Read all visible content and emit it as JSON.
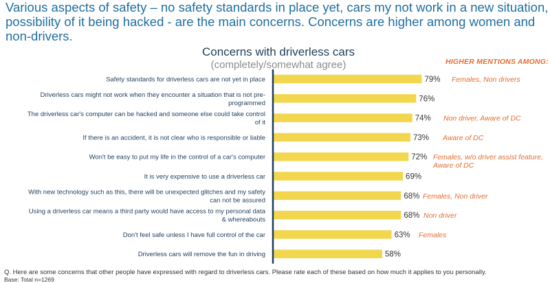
{
  "headline": "Various aspects of safety – no safety standards in place yet, cars my not work in a new situation, possibility of it being hacked - are the main concerns. Concerns are higher among women and non-drivers.",
  "chart_data": {
    "type": "bar",
    "orientation": "horizontal",
    "title": "Concerns with driverless cars",
    "subtitle": "(completely/somewhat agree)",
    "xlabel": "",
    "ylabel": "",
    "xlim": [
      0,
      100
    ],
    "value_suffix": "%",
    "categories": [
      "Safety standards for driverless cars are not yet in place",
      "Driverless cars might not work when they encounter a situation that is not pre-programmed",
      "The driverless car's computer can be hacked and someone else could take control of it",
      "If there is an accident, it is not clear who is responsible or liable",
      "Won't be easy to put my life in the control of a car's computer",
      "It is very expensive to use a driverless car",
      "With new technology such as this, there will be unexpected glitches and my safety can not be assured",
      "Using a driverless car means a third party would have access to  my personal data & whereabouts",
      "Don't feel safe unless I have full control of the car",
      "Driverless cars will remove the fun in driving"
    ],
    "category_lines": [
      [
        "Safety standards for driverless cars are not yet in place"
      ],
      [
        "Driverless cars might not work when they encounter a situation that is not pre-",
        "programmed"
      ],
      [
        "The driverless car's computer can be hacked and someone else could take control",
        "of it"
      ],
      [
        "If there is an accident, it is not clear who is responsible or liable"
      ],
      [
        "Won't be easy to put my life in the control of a car's computer"
      ],
      [
        "It is very expensive to use a driverless car"
      ],
      [
        "With new technology such as this, there will be unexpected glitches and my safety",
        "can not be assured"
      ],
      [
        "Using a driverless car means a third party would have access to  my personal data",
        "& whereabouts"
      ],
      [
        "Don't feel safe unless I have full control of the car"
      ],
      [
        "Driverless cars will remove the fun in driving"
      ]
    ],
    "values": [
      79,
      76,
      74,
      73,
      72,
      69,
      68,
      68,
      63,
      58
    ],
    "higher_mentions_header": "HIGHER MENTIONS AMONG:",
    "higher_mentions": [
      [
        "Females, Non drivers"
      ],
      [],
      [
        "Non driver, Aware of DC"
      ],
      [
        "Aware of DC"
      ],
      [
        "Females, w/o driver assist feature,",
        "Aware of DC"
      ],
      [],
      [
        "Females, Non driver"
      ],
      [
        "Non driver"
      ],
      [
        "Females"
      ],
      []
    ]
  },
  "colors": {
    "bar": "#f2d74e",
    "axis": "#1f3c5a",
    "headline": "#1f6f9e",
    "label": "#1f3c5a",
    "mention": "#e36c2f",
    "subtitle": "#8b8b8b"
  },
  "footnote": "Q. Here are some concerns that other people have expressed with regard to driverless cars. Please rate each of these based on how much it applies to you personally.",
  "base_note": "Base: Total n=1269"
}
